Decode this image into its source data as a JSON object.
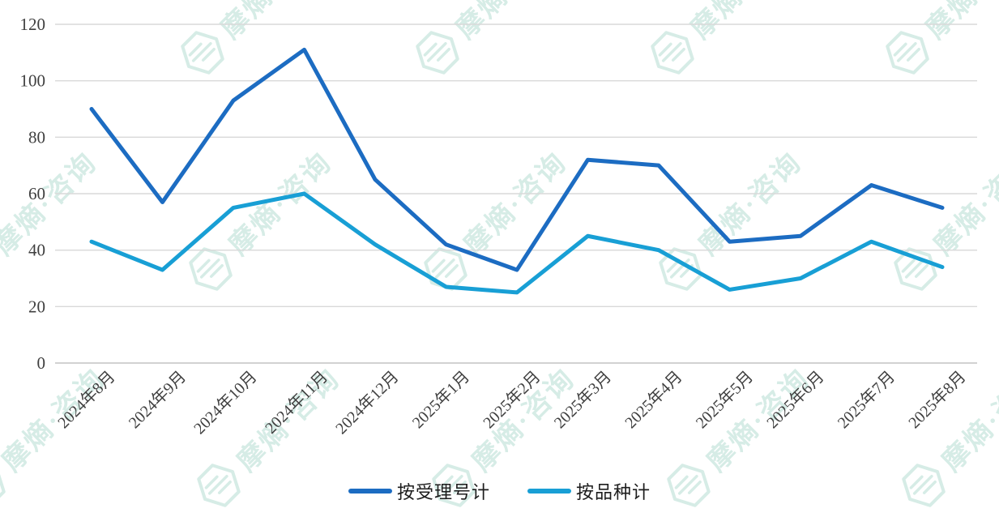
{
  "chart_data": {
    "type": "line",
    "title": "",
    "categories": [
      "2024年8月",
      "2024年9月",
      "2024年10月",
      "2024年11月",
      "2024年12月",
      "2025年1月",
      "2025年2月",
      "2025年3月",
      "2025年4月",
      "2025年5月",
      "2025年6月",
      "2025年7月",
      "2025年8月"
    ],
    "series": [
      {
        "name": "按受理号计",
        "color": "#1c6cc2",
        "values": [
          90,
          57,
          93,
          111,
          65,
          42,
          33,
          72,
          70,
          43,
          45,
          63,
          55
        ]
      },
      {
        "name": "按品种计",
        "color": "#189fd5",
        "values": [
          43,
          33,
          55,
          60,
          42,
          27,
          25,
          45,
          40,
          26,
          30,
          43,
          34
        ]
      }
    ],
    "ylim": [
      0,
      120
    ],
    "y_ticks": [
      0,
      20,
      40,
      60,
      80,
      100,
      120
    ],
    "grid": true,
    "legend_position": "bottom"
  },
  "watermark": {
    "text": "摩熵·咨询",
    "color": "#d6ece6"
  },
  "colors": {
    "gridline": "#d9d9d9",
    "axis_line": "#c4c4c4",
    "tick_label": "#3f3f3f"
  }
}
